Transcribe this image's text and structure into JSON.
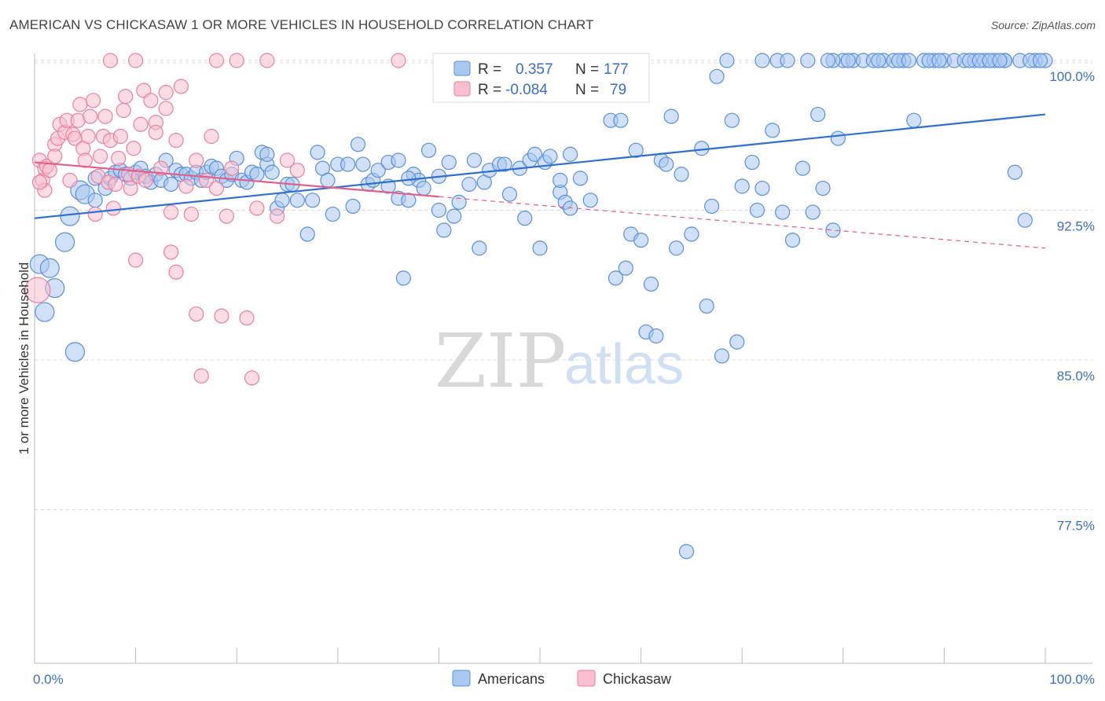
{
  "header": {
    "title": "AMERICAN VS CHICKASAW 1 OR MORE VEHICLES IN HOUSEHOLD CORRELATION CHART",
    "source": "Source: ZipAtlas.com"
  },
  "watermark": {
    "zip": "ZIP",
    "atlas": "atlas"
  },
  "legend": {
    "rows": [
      {
        "r_label": "R =",
        "r_value": "0.357",
        "n_label": "N =",
        "n_value": "177"
      },
      {
        "r_label": "R =",
        "r_value": "-0.084",
        "n_label": "N =",
        "n_value": "79"
      }
    ]
  },
  "bottom_legend": {
    "americans": "Americans",
    "chickasaw": "Chickasaw"
  },
  "colors": {
    "americans_fill": "#a9c8f0",
    "americans_stroke": "#5a8fd8",
    "americans_line": "#2f6fcf",
    "chickasaw_fill": "#f7bfd0",
    "chickasaw_stroke": "#e97fa0",
    "chickasaw_line": "#e0608a",
    "grid": "#d9d9d9",
    "axis_text": "#3a6fc4"
  },
  "chart_data": {
    "type": "scatter",
    "title": "AMERICAN VS CHICKASAW 1 OR MORE VEHICLES IN HOUSEHOLD CORRELATION CHART",
    "xlabel": "",
    "ylabel": "1 or more Vehicles in Household",
    "xlim": [
      0,
      100
    ],
    "ylim": [
      70,
      100.5
    ],
    "x_ticks": [
      "0.0%",
      "100.0%"
    ],
    "y_ticks": [
      {
        "value": 100,
        "label": "100.0%"
      },
      {
        "value": 92.5,
        "label": "92.5%"
      },
      {
        "value": 85,
        "label": "85.0%"
      },
      {
        "value": 77.5,
        "label": "77.5%"
      }
    ],
    "grid": true,
    "legend_position": "top-center",
    "series": [
      {
        "name": "Americans",
        "r": 0.357,
        "n": 177,
        "trend": {
          "x": [
            0,
            100
          ],
          "y": [
            92.1,
            97.3
          ]
        },
        "points": [
          [
            0.5,
            89.8
          ],
          [
            1,
            87.4
          ],
          [
            1.5,
            89.6
          ],
          [
            2,
            88.6
          ],
          [
            3.5,
            92.2
          ],
          [
            3,
            90.9
          ],
          [
            4,
            85.4
          ],
          [
            4.5,
            93.5
          ],
          [
            5,
            93.3
          ],
          [
            6,
            93.0
          ],
          [
            6,
            94.1
          ],
          [
            7,
            93.6
          ],
          [
            7.5,
            94.1
          ],
          [
            8,
            94.4
          ],
          [
            8.5,
            94.5
          ],
          [
            9,
            94.3
          ],
          [
            9.5,
            94.1
          ],
          [
            10,
            94.4
          ],
          [
            10.5,
            94.6
          ],
          [
            11,
            94.2
          ],
          [
            11.5,
            93.9
          ],
          [
            12,
            94.3
          ],
          [
            12.5,
            94.0
          ],
          [
            13,
            95.0
          ],
          [
            13.5,
            93.8
          ],
          [
            14,
            94.5
          ],
          [
            14.5,
            94.3
          ],
          [
            15,
            94.3
          ],
          [
            15.5,
            94.1
          ],
          [
            16,
            94.4
          ],
          [
            16.5,
            94.0
          ],
          [
            17,
            94.4
          ],
          [
            17.5,
            94.7
          ],
          [
            18,
            94.6
          ],
          [
            18.5,
            94.2
          ],
          [
            19,
            94.0
          ],
          [
            19.5,
            94.3
          ],
          [
            20,
            95.1
          ],
          [
            20.5,
            94.0
          ],
          [
            21,
            93.9
          ],
          [
            21.5,
            94.4
          ],
          [
            22,
            94.3
          ],
          [
            22.5,
            95.4
          ],
          [
            23,
            94.8
          ],
          [
            23.5,
            94.4
          ],
          [
            24,
            92.6
          ],
          [
            24.5,
            93.0
          ],
          [
            25,
            93.8
          ],
          [
            25.5,
            93.8
          ],
          [
            26,
            93.0
          ],
          [
            27,
            91.3
          ],
          [
            27.5,
            93.0
          ],
          [
            28,
            95.4
          ],
          [
            28.5,
            94.6
          ],
          [
            29,
            94.0
          ],
          [
            29.5,
            92.3
          ],
          [
            30,
            94.8
          ],
          [
            31,
            94.8
          ],
          [
            31.5,
            92.7
          ],
          [
            32,
            95.8
          ],
          [
            32.5,
            94.8
          ],
          [
            33,
            93.8
          ],
          [
            33.5,
            94.0
          ],
          [
            34,
            94.5
          ],
          [
            35,
            94.9
          ],
          [
            36,
            93.1
          ],
          [
            36.5,
            89.1
          ],
          [
            37,
            93.0
          ],
          [
            37.5,
            94.3
          ],
          [
            38,
            94.0
          ],
          [
            38.5,
            93.6
          ],
          [
            39,
            95.5
          ],
          [
            40,
            94.2
          ],
          [
            40.5,
            91.5
          ],
          [
            41,
            94.9
          ],
          [
            41.5,
            92.2
          ],
          [
            42,
            92.9
          ],
          [
            43,
            93.8
          ],
          [
            43.5,
            95.0
          ],
          [
            44,
            90.6
          ],
          [
            44.5,
            93.9
          ],
          [
            45,
            94.5
          ],
          [
            46,
            94.8
          ],
          [
            46.5,
            94.8
          ],
          [
            47,
            93.3
          ],
          [
            48,
            94.6
          ],
          [
            48.5,
            92.1
          ],
          [
            49,
            95.0
          ],
          [
            49.5,
            95.3
          ],
          [
            50,
            90.6
          ],
          [
            50.5,
            94.9
          ],
          [
            51,
            95.2
          ],
          [
            52,
            93.4
          ],
          [
            52.5,
            92.9
          ],
          [
            53,
            92.6
          ],
          [
            54,
            94.1
          ],
          [
            55,
            93.0
          ],
          [
            56,
            99.5
          ],
          [
            55,
            99.9
          ],
          [
            57,
            97.0
          ],
          [
            57.5,
            89.1
          ],
          [
            58,
            97.0
          ],
          [
            58.5,
            89.6
          ],
          [
            59,
            91.3
          ],
          [
            59.5,
            95.5
          ],
          [
            60,
            91.0
          ],
          [
            60.5,
            86.4
          ],
          [
            61,
            88.8
          ],
          [
            61.5,
            86.2
          ],
          [
            62,
            95.0
          ],
          [
            62.5,
            94.8
          ],
          [
            63,
            97.2
          ],
          [
            63.5,
            90.6
          ],
          [
            64,
            94.3
          ],
          [
            64.5,
            75.4
          ],
          [
            65,
            91.3
          ],
          [
            66,
            95.6
          ],
          [
            66.5,
            87.7
          ],
          [
            67,
            92.7
          ],
          [
            67.5,
            99.2
          ],
          [
            68,
            85.2
          ],
          [
            69,
            97.0
          ],
          [
            69.5,
            85.9
          ],
          [
            70,
            93.7
          ],
          [
            71,
            94.9
          ],
          [
            71.5,
            92.5
          ],
          [
            72,
            93.6
          ],
          [
            73,
            96.5
          ],
          [
            73.5,
            100
          ],
          [
            74,
            92.4
          ],
          [
            74.5,
            100
          ],
          [
            75,
            91.0
          ],
          [
            76,
            94.6
          ],
          [
            76.5,
            100
          ],
          [
            77,
            92.4
          ],
          [
            77.5,
            97.3
          ],
          [
            78,
            93.6
          ],
          [
            79,
            91.5
          ],
          [
            79.5,
            96.1
          ],
          [
            80,
            100
          ],
          [
            81,
            100
          ],
          [
            82,
            100
          ],
          [
            83,
            100
          ],
          [
            84,
            100
          ],
          [
            85,
            100
          ],
          [
            86,
            100
          ],
          [
            87,
            97.0
          ],
          [
            88,
            100
          ],
          [
            89,
            100
          ],
          [
            90,
            100
          ],
          [
            91,
            100
          ],
          [
            92,
            100
          ],
          [
            93,
            100
          ],
          [
            94,
            100
          ],
          [
            95,
            100
          ],
          [
            96,
            100
          ],
          [
            97,
            94.4
          ],
          [
            98,
            92.0
          ],
          [
            36,
            95.0
          ],
          [
            23,
            95.3
          ],
          [
            37,
            94.1
          ],
          [
            40,
            92.5
          ],
          [
            53,
            95.3
          ],
          [
            35,
            93.7
          ],
          [
            52,
            94.0
          ],
          [
            49,
            99.6
          ],
          [
            58,
            99.8
          ],
          [
            68.5,
            100
          ],
          [
            72,
            100
          ],
          [
            79,
            100
          ],
          [
            85.5,
            100
          ],
          [
            88.5,
            100
          ],
          [
            89.5,
            100
          ],
          [
            92.5,
            100
          ],
          [
            93.5,
            100
          ],
          [
            94.5,
            100
          ],
          [
            96,
            100
          ],
          [
            99,
            100
          ],
          [
            100,
            100
          ],
          [
            97.5,
            100
          ],
          [
            78.5,
            100
          ],
          [
            80.5,
            100
          ],
          [
            83.5,
            100
          ],
          [
            86.5,
            100
          ],
          [
            98.5,
            100
          ],
          [
            95.5,
            100
          ],
          [
            99.5,
            100
          ]
        ]
      },
      {
        "name": "Chickasaw",
        "r": -0.084,
        "n": 79,
        "trend": {
          "x": [
            0,
            100
          ],
          "y": [
            94.9,
            90.6
          ]
        },
        "points": [
          [
            0.5,
            95.0
          ],
          [
            0.8,
            94.0
          ],
          [
            1,
            94.6
          ],
          [
            1.2,
            94.7
          ],
          [
            1.5,
            94.5
          ],
          [
            2,
            95.8
          ],
          [
            2.3,
            96.1
          ],
          [
            2.5,
            96.8
          ],
          [
            3,
            96.4
          ],
          [
            3.2,
            97.0
          ],
          [
            3.5,
            94.0
          ],
          [
            3.8,
            96.3
          ],
          [
            4,
            96.1
          ],
          [
            4.3,
            97.0
          ],
          [
            4.5,
            97.8
          ],
          [
            4.8,
            95.6
          ],
          [
            5,
            95.0
          ],
          [
            5.3,
            96.2
          ],
          [
            5.5,
            97.2
          ],
          [
            5.8,
            98.0
          ],
          [
            6,
            92.3
          ],
          [
            6.3,
            94.2
          ],
          [
            6.5,
            95.2
          ],
          [
            6.8,
            96.2
          ],
          [
            7,
            97.2
          ],
          [
            7.3,
            93.9
          ],
          [
            7.5,
            96.0
          ],
          [
            7.8,
            92.6
          ],
          [
            8,
            93.8
          ],
          [
            8.3,
            95.1
          ],
          [
            8.5,
            96.2
          ],
          [
            8.8,
            97.5
          ],
          [
            9,
            98.2
          ],
          [
            9.3,
            94.3
          ],
          [
            9.5,
            93.6
          ],
          [
            9.8,
            95.6
          ],
          [
            10,
            90.0
          ],
          [
            10.3,
            94.2
          ],
          [
            10.5,
            96.8
          ],
          [
            10.8,
            98.5
          ],
          [
            11,
            94.0
          ],
          [
            11.5,
            98.0
          ],
          [
            12,
            96.9
          ],
          [
            12.5,
            94.6
          ],
          [
            13,
            97.6
          ],
          [
            13.5,
            92.4
          ],
          [
            14,
            89.4
          ],
          [
            14.5,
            98.7
          ],
          [
            15,
            93.7
          ],
          [
            15.5,
            92.3
          ],
          [
            16,
            87.3
          ],
          [
            16.5,
            84.2
          ],
          [
            17,
            94.0
          ],
          [
            17.5,
            96.2
          ],
          [
            18,
            93.6
          ],
          [
            18.5,
            87.2
          ],
          [
            19,
            92.2
          ],
          [
            19.5,
            94.6
          ],
          [
            20,
            100
          ],
          [
            21,
            87.1
          ],
          [
            21.5,
            84.1
          ],
          [
            22,
            92.6
          ],
          [
            23,
            100
          ],
          [
            24,
            92.2
          ],
          [
            25,
            95.0
          ],
          [
            26,
            94.5
          ],
          [
            7.5,
            100
          ],
          [
            18,
            100
          ],
          [
            36,
            100
          ],
          [
            10,
            100
          ],
          [
            2,
            95.2
          ],
          [
            1,
            93.5
          ],
          [
            0.5,
            93.9
          ],
          [
            14,
            96.0
          ],
          [
            13,
            98.4
          ],
          [
            12,
            96.4
          ],
          [
            16,
            95.0
          ],
          [
            13.5,
            90.4
          ],
          [
            0.3,
            88.5
          ]
        ]
      }
    ]
  }
}
